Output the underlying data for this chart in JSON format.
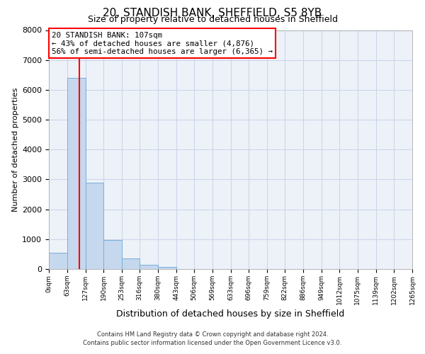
{
  "title": "20, STANDISH BANK, SHEFFIELD, S5 8YB",
  "subtitle": "Size of property relative to detached houses in Sheffield",
  "xlabel": "Distribution of detached houses by size in Sheffield",
  "ylabel": "Number of detached properties",
  "bin_edges": [
    0,
    63,
    127,
    190,
    253,
    316,
    380,
    443,
    506,
    569,
    633,
    696,
    759,
    822,
    886,
    949,
    1012,
    1075,
    1139,
    1202,
    1265
  ],
  "bar_heights": [
    550,
    6400,
    2900,
    975,
    350,
    150,
    80,
    0,
    0,
    0,
    0,
    0,
    0,
    0,
    0,
    0,
    0,
    0,
    0,
    0
  ],
  "bar_color": "#c5d8ee",
  "bar_edgecolor": "#7aaed6",
  "vline_x": 107,
  "vline_color": "red",
  "ylim": [
    0,
    8000
  ],
  "yticks": [
    0,
    1000,
    2000,
    3000,
    4000,
    5000,
    6000,
    7000,
    8000
  ],
  "xtick_labels": [
    "0sqm",
    "63sqm",
    "127sqm",
    "190sqm",
    "253sqm",
    "316sqm",
    "380sqm",
    "443sqm",
    "506sqm",
    "569sqm",
    "633sqm",
    "696sqm",
    "759sqm",
    "822sqm",
    "886sqm",
    "949sqm",
    "1012sqm",
    "1075sqm",
    "1139sqm",
    "1202sqm",
    "1265sqm"
  ],
  "annotation_title": "20 STANDISH BANK: 107sqm",
  "annotation_line1": "← 43% of detached houses are smaller (4,876)",
  "annotation_line2": "56% of semi-detached houses are larger (6,365) →",
  "annotation_box_color": "red",
  "footer1": "Contains HM Land Registry data © Crown copyright and database right 2024.",
  "footer2": "Contains public sector information licensed under the Open Government Licence v3.0.",
  "grid_color": "#ccd6e8",
  "bg_color": "#edf2f9",
  "title_fontsize": 11,
  "subtitle_fontsize": 9,
  "ylabel_fontsize": 8,
  "xlabel_fontsize": 9
}
